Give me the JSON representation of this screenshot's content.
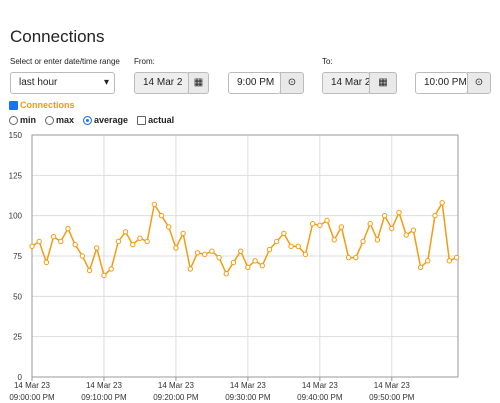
{
  "header": {
    "title": "Connections"
  },
  "controls": {
    "range_label": "Select or enter date/time range",
    "range_value": "last hour",
    "from_label": "From:",
    "from_date": "14 Mar 2",
    "from_time": "9:00 PM",
    "to_label": "To:",
    "to_date": "14 Mar 2",
    "to_time": "10:00 PM",
    "series_toggle": {
      "label": "Connections",
      "checked": true
    },
    "modes": [
      {
        "label": "min",
        "checked": false
      },
      {
        "label": "max",
        "checked": false
      },
      {
        "label": "average",
        "checked": true
      }
    ],
    "actual": {
      "label": "actual",
      "checked": false
    }
  },
  "chart_data": {
    "type": "line",
    "color": "#f39c12",
    "grid": true,
    "x": [
      0,
      1,
      2,
      3,
      4,
      5,
      6,
      7,
      8,
      9,
      10,
      11,
      12,
      13,
      14,
      15,
      16,
      17,
      18,
      19,
      20,
      21,
      22,
      23,
      24,
      25,
      26,
      27,
      28,
      29,
      30,
      31,
      32,
      33,
      34,
      35,
      36,
      37,
      38,
      39,
      40,
      41,
      42,
      43,
      44,
      45,
      46,
      47,
      48,
      49,
      50,
      51,
      52,
      53,
      54,
      55,
      56,
      57,
      58,
      59
    ],
    "values": [
      81,
      84,
      71,
      87,
      84,
      92,
      82,
      75,
      66,
      80,
      63,
      67,
      84,
      90,
      82,
      86,
      84,
      107,
      100,
      93,
      80,
      89,
      67,
      77,
      76,
      78,
      74,
      64,
      71,
      78,
      68,
      72,
      69,
      79,
      84,
      89,
      81,
      81,
      76,
      95,
      94,
      97,
      85,
      93,
      74,
      74,
      84,
      95,
      85,
      100,
      92,
      102,
      88,
      91,
      68,
      72,
      100,
      108,
      72,
      74
    ],
    "xlim": [
      0,
      59.2
    ],
    "xticks": [
      {
        "value": 0,
        "date": "14 Mar 23",
        "label": "09:00:00 PM"
      },
      {
        "value": 10,
        "date": "14 Mar 23",
        "label": "09:10:00 PM"
      },
      {
        "value": 20,
        "date": "14 Mar 23",
        "label": "09:20:00 PM"
      },
      {
        "value": 30,
        "date": "14 Mar 23",
        "label": "09:30:00 PM"
      },
      {
        "value": 40,
        "date": "14 Mar 23",
        "label": "09:40:00 PM"
      },
      {
        "value": 50,
        "date": "14 Mar 23",
        "label": "09:50:00 PM"
      }
    ],
    "ylim": [
      0,
      150
    ],
    "yticks": [
      0,
      25,
      50,
      75,
      100,
      125,
      150
    ]
  }
}
